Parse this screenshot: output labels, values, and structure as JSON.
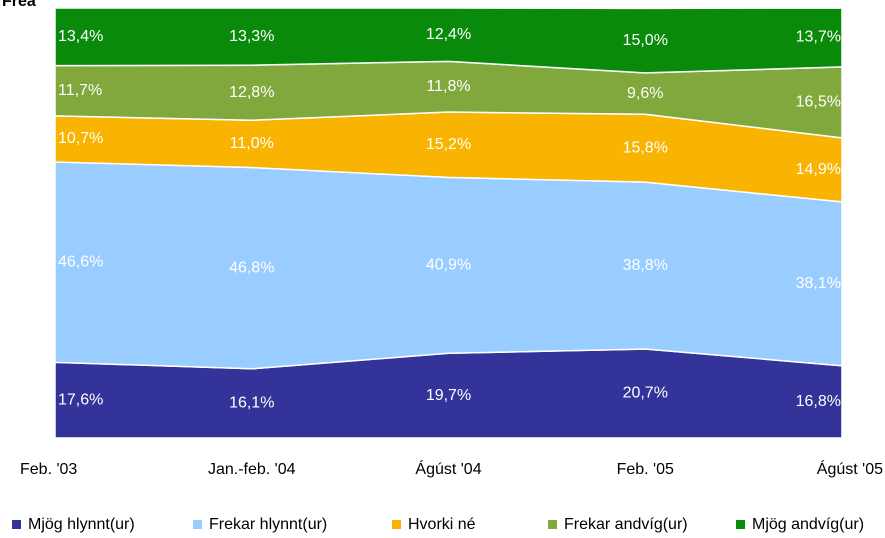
{
  "chart_data": {
    "type": "stacked_area",
    "title": "Frea",
    "categories": [
      "Feb. '03",
      "Jan.-feb. '04",
      "Ágúst '04",
      "Feb. '05",
      "Ágúst '05"
    ],
    "ylim": [
      0,
      100
    ],
    "legend": "bottom",
    "series": [
      {
        "name": "Mjög hlynnt(ur)",
        "color": "#333399",
        "values": [
          17.6,
          16.1,
          19.7,
          20.7,
          16.8
        ],
        "value_labels": [
          "17,6%",
          "16,1%",
          "19,7%",
          "20,7%",
          "16,8%"
        ]
      },
      {
        "name": "Frekar hlynnt(ur)",
        "color": "#99ccff",
        "values": [
          46.6,
          46.8,
          40.9,
          38.8,
          38.1
        ],
        "value_labels": [
          "46,6%",
          "46,8%",
          "40,9%",
          "38,8%",
          "38,1%"
        ]
      },
      {
        "name": "Hvorki né",
        "color": "#f8b400",
        "values": [
          10.7,
          11.0,
          15.2,
          15.8,
          14.9
        ],
        "value_labels": [
          "10,7%",
          "11,0%",
          "15,2%",
          "15,8%",
          "14,9%"
        ]
      },
      {
        "name": "Frekar andvíg(ur)",
        "color": "#80a83c",
        "values": [
          11.7,
          12.8,
          11.8,
          9.6,
          16.5
        ],
        "value_labels": [
          "11,7%",
          "12,8%",
          "11,8%",
          "9,6%",
          "16,5%"
        ]
      },
      {
        "name": "Mjög andvíg(ur)",
        "color": "#0a8a0a",
        "values": [
          13.4,
          13.3,
          12.4,
          15.0,
          13.7
        ],
        "value_labels": [
          "13,4%",
          "13,3%",
          "12,4%",
          "15,0%",
          "13,7%"
        ]
      }
    ]
  }
}
